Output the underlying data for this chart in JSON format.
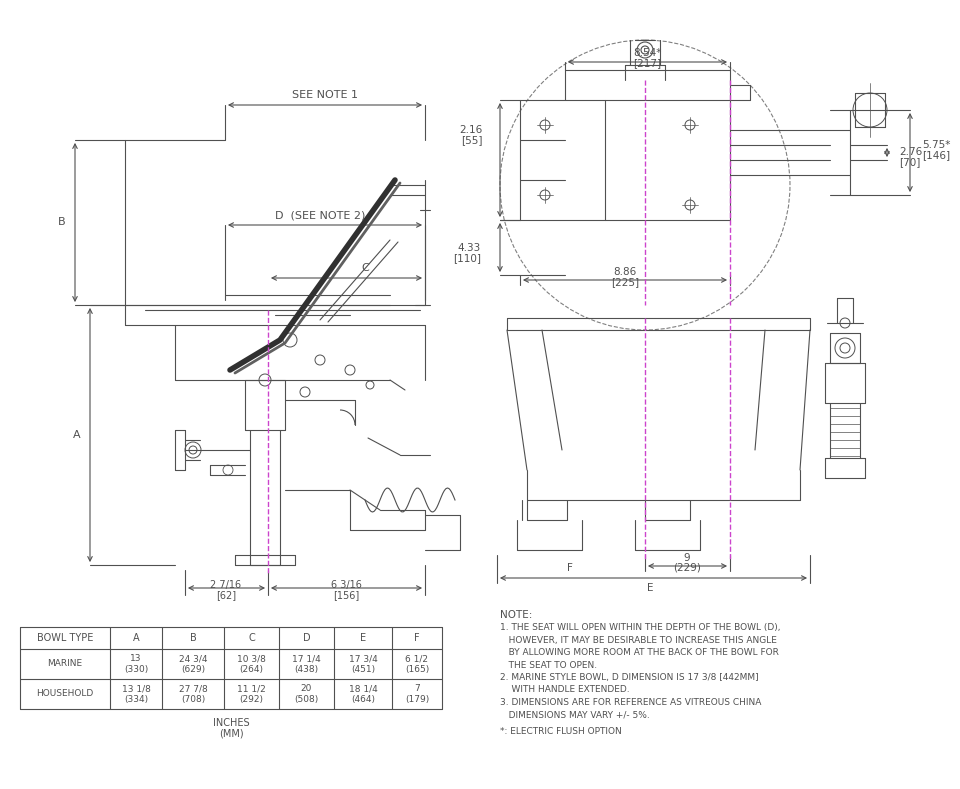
{
  "bg_color": "#ffffff",
  "line_color": "#505050",
  "dim_color": "#505050",
  "magenta_color": "#cc44cc",
  "table_headers": [
    "BOWL TYPE",
    "A",
    "B",
    "C",
    "D",
    "E",
    "F"
  ],
  "table_rows": [
    [
      "MARINE",
      "13\n(330)",
      "24 3/4\n(629)",
      "10 3/8\n(264)",
      "17 1/4\n(438)",
      "17 3/4\n(451)",
      "6 1/2\n(165)"
    ],
    [
      "HOUSEHOLD",
      "13 1/8\n(334)",
      "27 7/8\n(708)",
      "11 1/2\n(292)",
      "20\n(508)",
      "18 1/4\n(464)",
      "7\n(179)"
    ]
  ],
  "table_footer": "INCHES\n(MM)",
  "left_dims": {
    "see_note1": "SEE NOTE 1",
    "D_label": "D  (SEE NOTE 2)",
    "C_label": "C",
    "B_label": "B",
    "A_label": "A",
    "bottom_left": "2 7/16\n[62]",
    "bottom_right": "6 3/16\n[156]"
  },
  "right_dims": {
    "d1": "8.54*",
    "d1b": "[217]",
    "d2": "2.16\n[55]",
    "d3": "5.75*\n[146]",
    "d4": "4.33\n[110]",
    "d5": "2.76\n[70]",
    "d6": "8.86",
    "d6b": "[225]",
    "d7": "9",
    "d7b": "(229)",
    "d8": "F",
    "d9": "E"
  },
  "note_header": "NOTE:",
  "note_lines": [
    "1. THE SEAT WILL OPEN WITHIN THE DEPTH OF THE BOWL (D),",
    "HOWEVER, IT MAY BE DESIRABLE TO INCREASE THIS ANGLE",
    "BY ALLOWING MORE ROOM AT THE BACK OF THE BOWL FOR",
    "THE SEAT TO OPEN.",
    "2. MARINE STYLE BOWL, D DIMENSION IS 17 3/8 [442MM]",
    "   WITH HANDLE EXTENDED.",
    "3. DIMENSIONS ARE FOR REFERENCE AS VITREOUS CHINA",
    "DIMENSIONS MAY VARY +/- 5%."
  ],
  "electric_note": "*: ELECTRIC FLUSH OPTION"
}
